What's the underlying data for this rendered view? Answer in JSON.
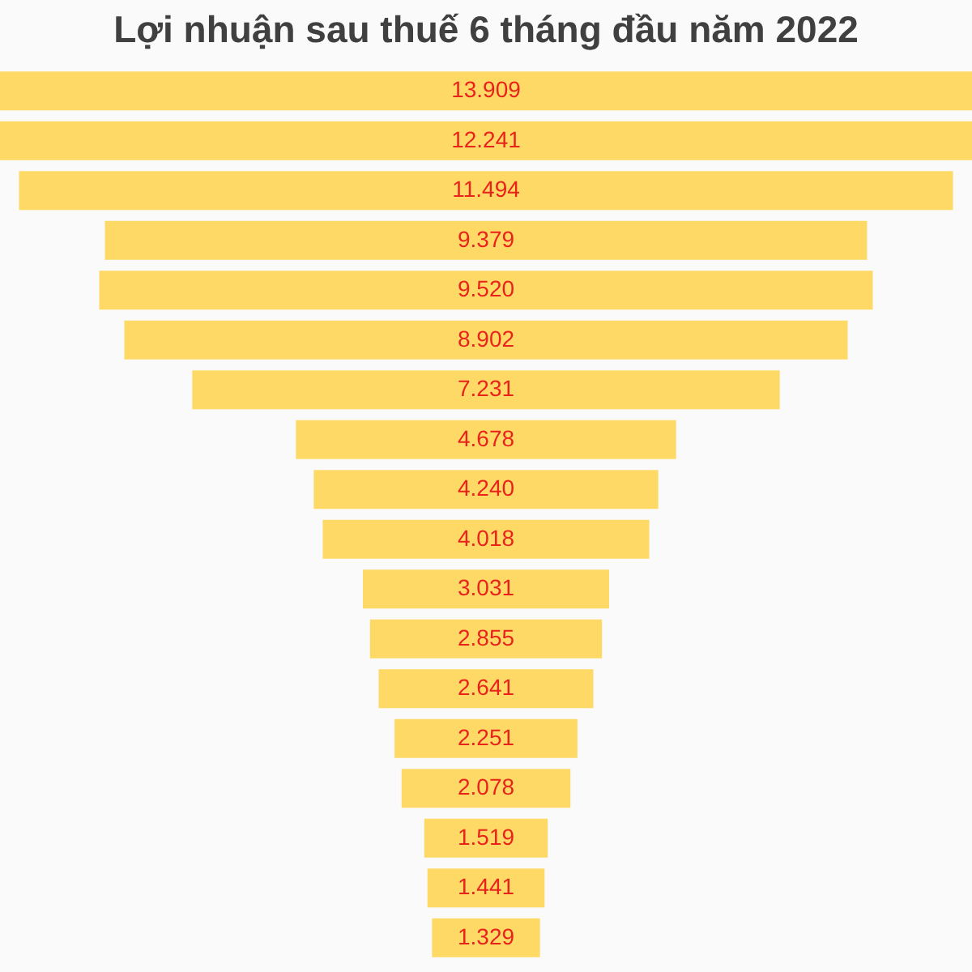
{
  "chart_data": {
    "type": "other",
    "title": "Lợi nhuận sau thuế 6 tháng đầu năm 2022",
    "categories": [
      null,
      null,
      null,
      null,
      null,
      null,
      null,
      null,
      null,
      null,
      null,
      null,
      null,
      null,
      null,
      null,
      null,
      null
    ],
    "values": [
      13.909,
      12.241,
      11.494,
      9.379,
      9.52,
      8.902,
      7.231,
      4.678,
      4.24,
      4.018,
      3.031,
      2.855,
      2.641,
      2.251,
      2.078,
      1.519,
      1.441,
      1.329
    ],
    "value_labels": [
      "13.909",
      "12.241",
      "11.494",
      "9.379",
      "9.520",
      "8.902",
      "7.231",
      "4.678",
      "4.240",
      "4.018",
      "3.031",
      "2.855",
      "2.641",
      "2.251",
      "2.078",
      "1.519",
      "1.441",
      "1.329"
    ],
    "color": "#ffd966"
  }
}
